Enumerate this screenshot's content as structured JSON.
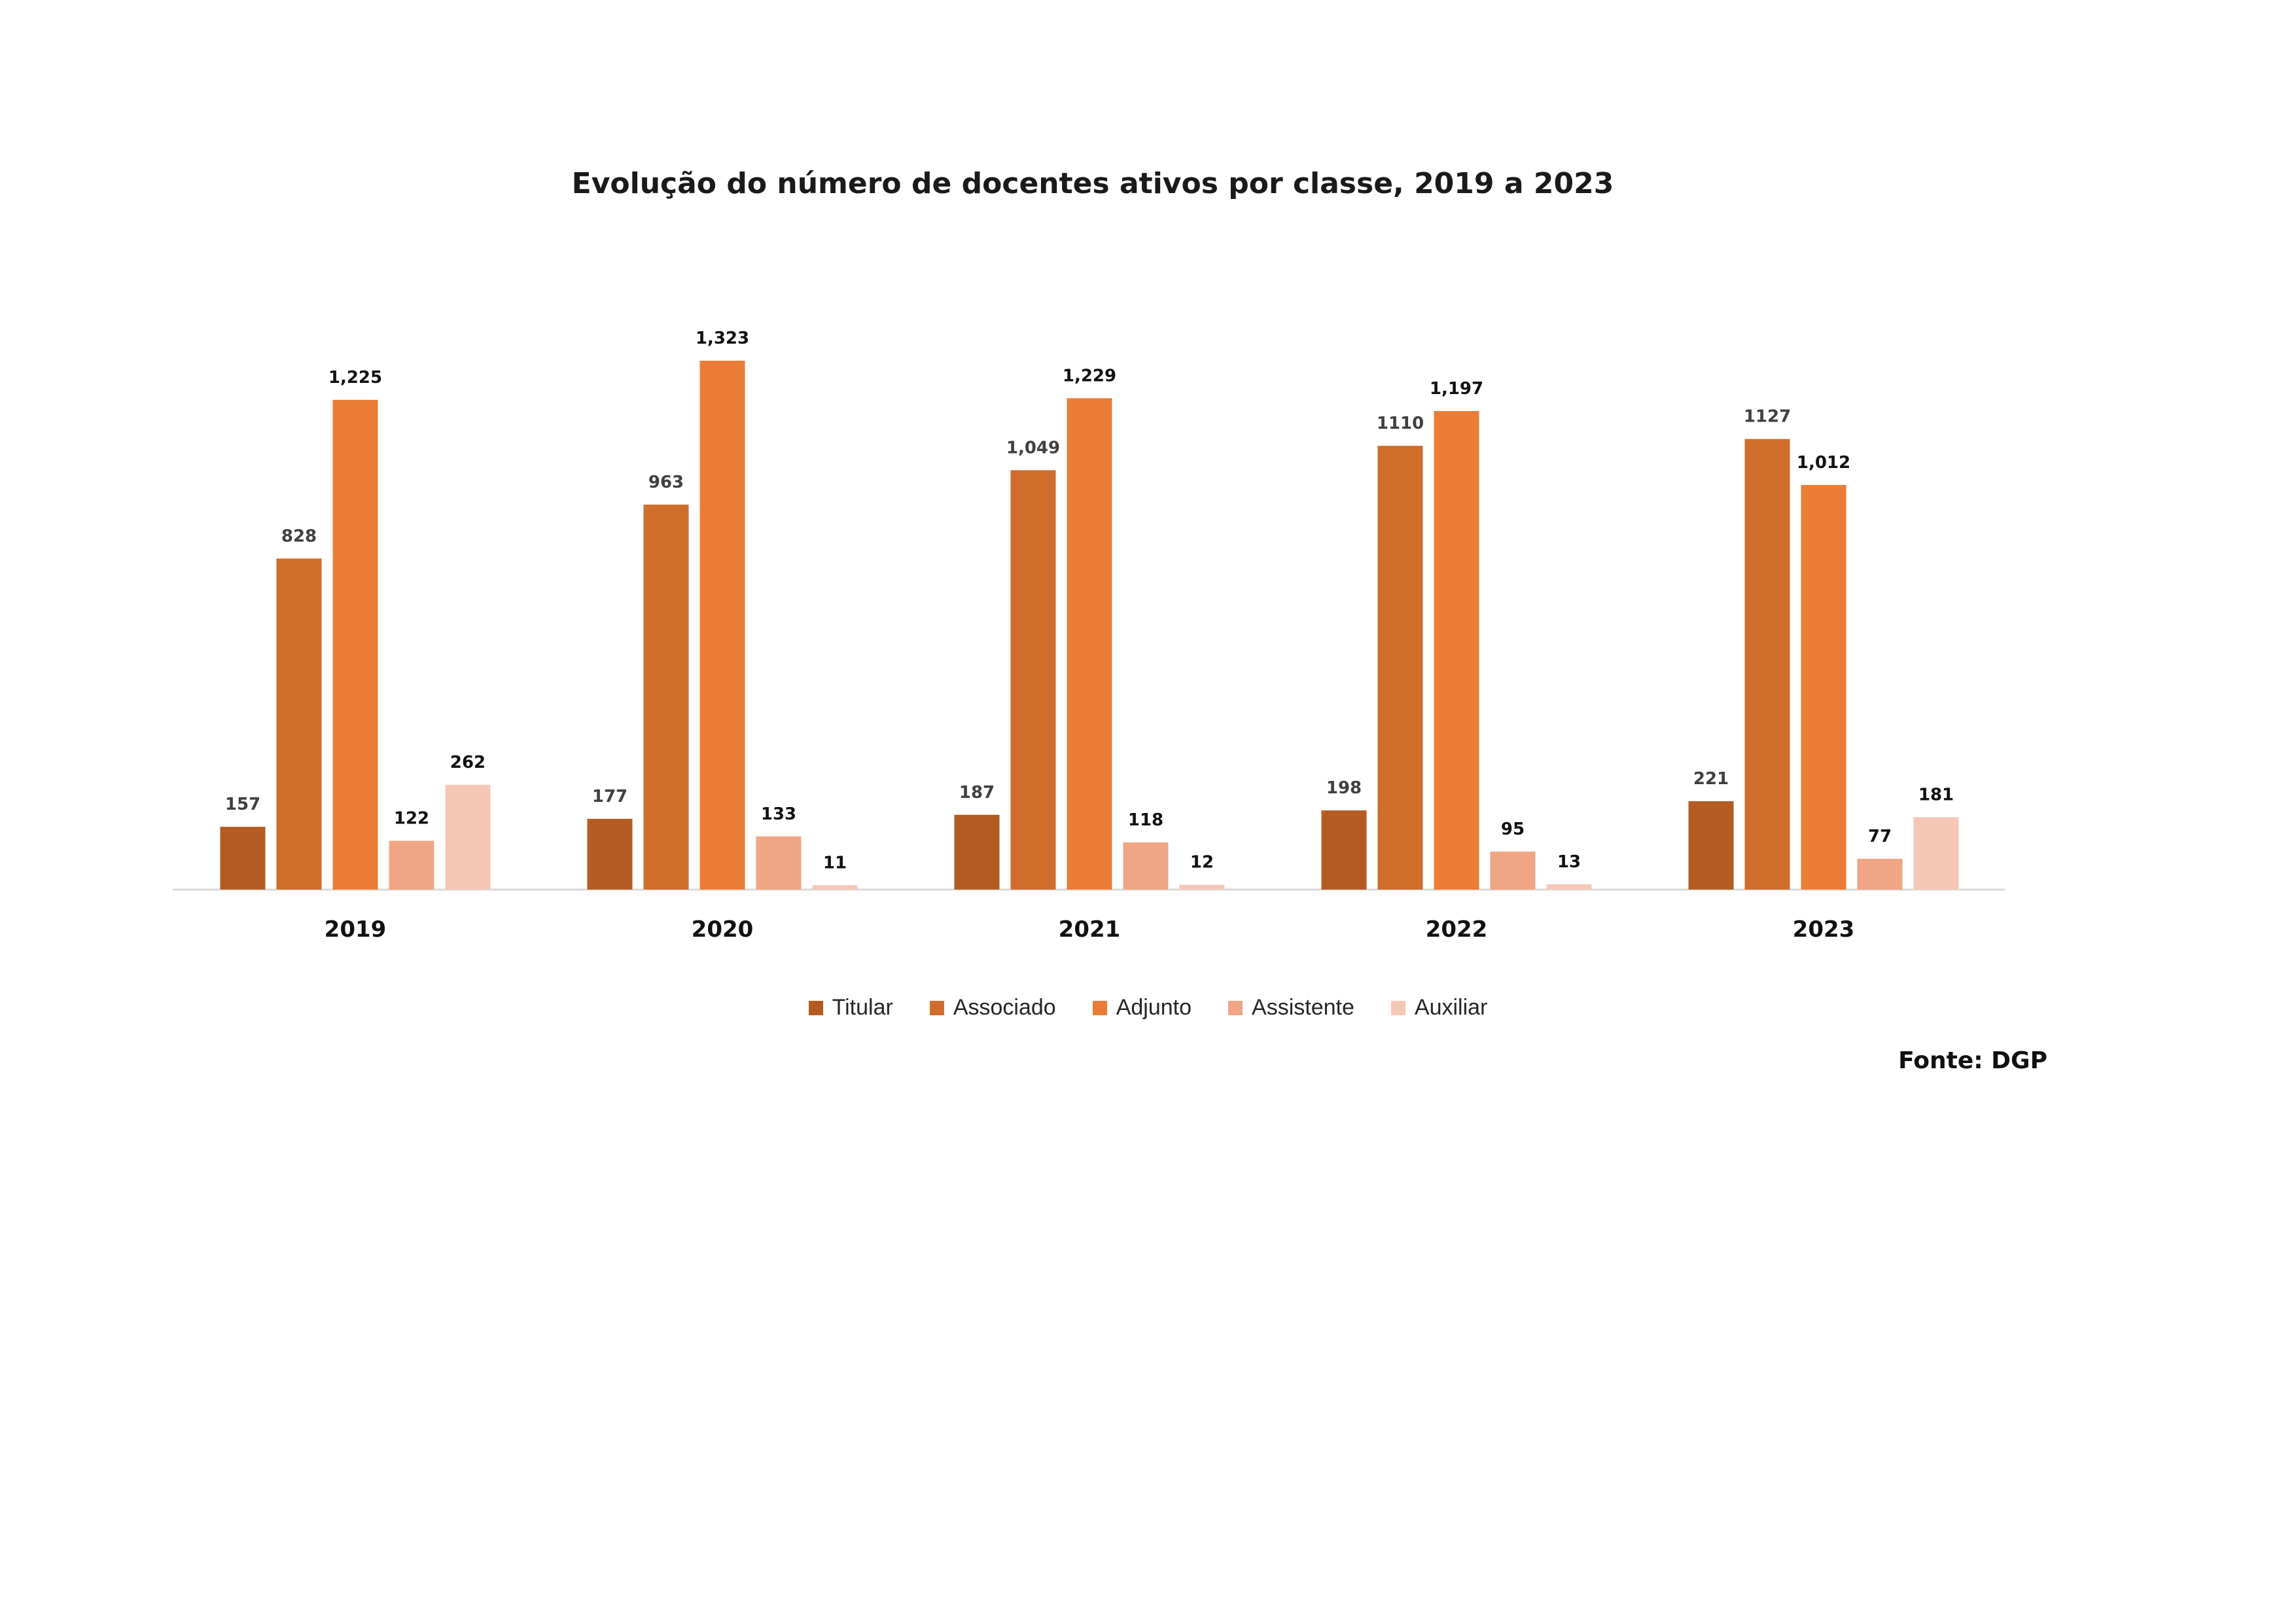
{
  "chart_data": {
    "type": "bar",
    "title": "Evolução do número de docentes ativos por classe, 2019 a 2023",
    "categories": [
      "2019",
      "2020",
      "2021",
      "2022",
      "2023"
    ],
    "series": [
      {
        "name": "Titular",
        "color": "#B45B22",
        "values": [
          157,
          177,
          187,
          198,
          221
        ],
        "labels": [
          "157",
          "177",
          "187",
          "198",
          "221"
        ]
      },
      {
        "name": "Associado",
        "color": "#D06D2B",
        "values": [
          828,
          963,
          1049,
          1110,
          1127
        ],
        "labels": [
          "828",
          "963",
          "1,049",
          "1110",
          "1127"
        ]
      },
      {
        "name": "Adjunto",
        "color": "#EA7C35",
        "values": [
          1225,
          1323,
          1229,
          1197,
          1012
        ],
        "labels": [
          "1,225",
          "1,323",
          "1,229",
          "1,197",
          "1,012"
        ]
      },
      {
        "name": "Assistente",
        "color": "#F0A585",
        "values": [
          122,
          133,
          118,
          95,
          77
        ],
        "labels": [
          "122",
          "133",
          "118",
          "95",
          "77"
        ]
      },
      {
        "name": "Auxiliar",
        "color": "#F6C6B6",
        "values": [
          262,
          11,
          12,
          13,
          181
        ],
        "labels": [
          "262",
          "11",
          "12",
          "13",
          "181"
        ]
      }
    ],
    "ylim": [
      0,
      1400
    ],
    "grid": false,
    "legend_position": "bottom",
    "source": "Fonte: DGP"
  }
}
